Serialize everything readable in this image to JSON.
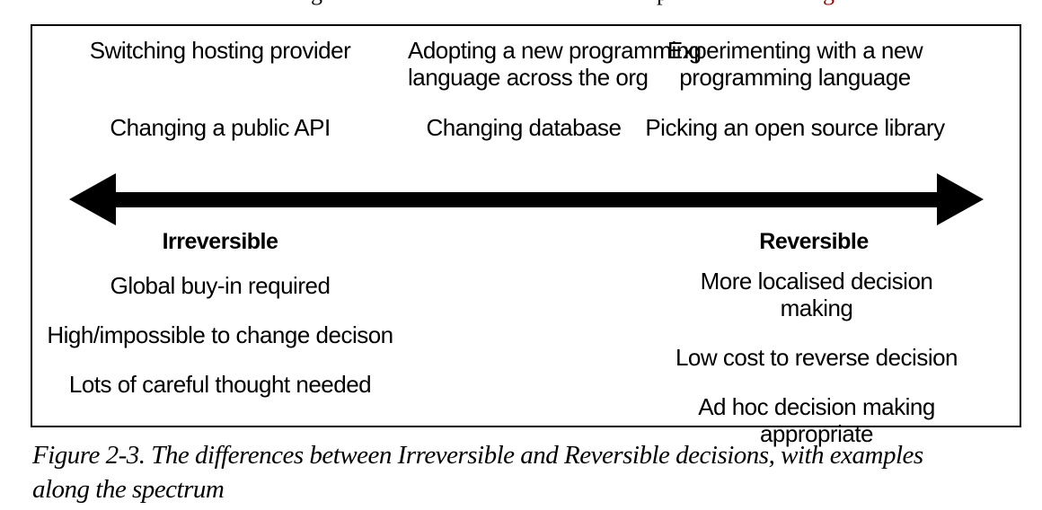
{
  "theme": {
    "text_color": "#000000",
    "border_color": "#000000",
    "link_red": "#8b0000"
  },
  "cropped_top_line": {
    "fragments": [
      "g",
      "p",
      "g"
    ]
  },
  "figure": {
    "examples_row1": [
      "Switching hosting provider",
      "Adopting a new programming\nlanguage across the org",
      "Experimenting with a new\nprogramming language"
    ],
    "examples_row2": [
      "Changing a public API",
      "Changing database",
      "Picking an open source library"
    ],
    "axis_labels": {
      "left": "Irreversible",
      "right": "Reversible"
    },
    "irreversible_traits": [
      "Global buy-in required",
      "High/impossible to change decison",
      "Lots of careful thought needed"
    ],
    "reversible_traits": [
      "More localised decision making",
      "Low cost to reverse decision",
      "Ad hoc decision making appropriate"
    ]
  },
  "caption": {
    "text": "Figure 2-3. The differences between Irreversible and Reversible decisions, with examples\nalong the spectrum"
  }
}
